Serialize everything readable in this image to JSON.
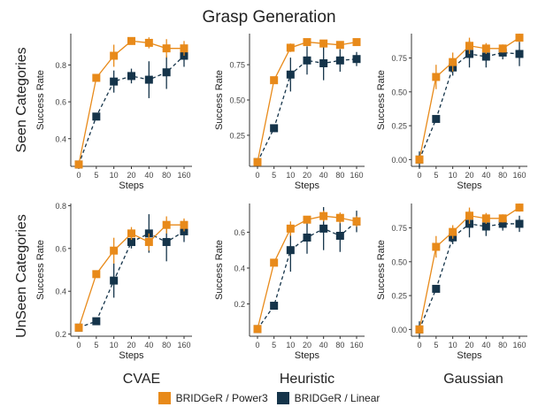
{
  "title": "Grasp Generation",
  "row_labels": [
    "Seen Categories",
    "UnSeen Categories"
  ],
  "col_labels": [
    "CVAE",
    "Heuristic",
    "Gaussian"
  ],
  "legend": [
    {
      "label": "BRIDGeR / Power3",
      "color": "#e88a1a"
    },
    {
      "label": "BRIDGeR / Linear",
      "color": "#15344a"
    }
  ],
  "chart_data": [
    {
      "type": "line",
      "row": "Seen Categories",
      "col": "CVAE",
      "xlabel": "Steps",
      "ylabel": "Success Rate",
      "x": [
        "0",
        "5",
        "10",
        "20",
        "40",
        "80",
        "160"
      ],
      "ylim": [
        0.25,
        0.97
      ],
      "yticks": [
        0.4,
        0.6,
        0.8
      ],
      "series": [
        {
          "name": "BRIDGeR / Power3",
          "values": [
            0.26,
            0.73,
            0.85,
            0.93,
            0.92,
            0.89,
            0.89
          ],
          "err": [
            0.0,
            0.0,
            0.06,
            0.02,
            0.03,
            0.05,
            0.04
          ]
        },
        {
          "name": "BRIDGeR / Linear",
          "values": [
            0.26,
            0.52,
            0.71,
            0.74,
            0.72,
            0.76,
            0.85
          ],
          "err": [
            0.0,
            0.0,
            0.06,
            0.04,
            0.1,
            0.09,
            0.06
          ]
        }
      ]
    },
    {
      "type": "line",
      "row": "Seen Categories",
      "col": "Heuristic",
      "xlabel": "Steps",
      "ylabel": "Success Rate",
      "x": [
        "0",
        "5",
        "10",
        "20",
        "40",
        "80",
        "160"
      ],
      "ylim": [
        0.03,
        0.97
      ],
      "yticks": [
        0.25,
        0.5,
        0.75
      ],
      "series": [
        {
          "name": "BRIDGeR / Power3",
          "values": [
            0.06,
            0.64,
            0.87,
            0.91,
            0.9,
            0.89,
            0.91
          ],
          "err": [
            0.0,
            0.0,
            0.03,
            0.02,
            0.02,
            0.02,
            0.02
          ]
        },
        {
          "name": "BRIDGeR / Linear",
          "values": [
            0.06,
            0.3,
            0.68,
            0.78,
            0.76,
            0.78,
            0.79
          ],
          "err": [
            0.0,
            0.0,
            0.12,
            0.1,
            0.12,
            0.08,
            0.05
          ]
        }
      ]
    },
    {
      "type": "line",
      "row": "Seen Categories",
      "col": "Gaussian",
      "xlabel": "Steps",
      "ylabel": "Success Rate",
      "x": [
        "0",
        "5",
        "10",
        "20",
        "40",
        "80",
        "160"
      ],
      "ylim": [
        -0.05,
        0.93
      ],
      "yticks": [
        0.0,
        0.25,
        0.5,
        0.75
      ],
      "series": [
        {
          "name": "BRIDGeR / Power3",
          "values": [
            0.0,
            0.61,
            0.72,
            0.84,
            0.82,
            0.82,
            0.9
          ],
          "err": [
            0.0,
            0.09,
            0.07,
            0.06,
            0.04,
            0.03,
            0.03
          ]
        },
        {
          "name": "BRIDGeR / Linear",
          "values": [
            0.0,
            0.3,
            0.68,
            0.78,
            0.76,
            0.79,
            0.78
          ],
          "err": [
            0.06,
            0.0,
            0.06,
            0.1,
            0.08,
            0.05,
            0.09
          ]
        }
      ]
    },
    {
      "type": "line",
      "row": "UnSeen Categories",
      "col": "CVAE",
      "xlabel": "Steps",
      "ylabel": "Success Rate",
      "x": [
        "0",
        "5",
        "10",
        "20",
        "40",
        "80",
        "160"
      ],
      "ylim": [
        0.19,
        0.81
      ],
      "yticks": [
        0.2,
        0.4,
        0.6,
        0.8
      ],
      "series": [
        {
          "name": "BRIDGeR / Power3",
          "values": [
            0.23,
            0.48,
            0.59,
            0.67,
            0.63,
            0.71,
            0.71
          ],
          "err": [
            0.0,
            0.0,
            0.06,
            0.03,
            0.04,
            0.04,
            0.03
          ]
        },
        {
          "name": "BRIDGeR / Linear",
          "values": [
            0.23,
            0.26,
            0.45,
            0.63,
            0.67,
            0.63,
            0.68
          ],
          "err": [
            0.0,
            0.0,
            0.08,
            0.03,
            0.09,
            0.09,
            0.05
          ]
        }
      ]
    },
    {
      "type": "line",
      "row": "UnSeen Categories",
      "col": "Heuristic",
      "xlabel": "Steps",
      "ylabel": "Success Rate",
      "x": [
        "0",
        "5",
        "10",
        "20",
        "40",
        "80",
        "160"
      ],
      "ylim": [
        0.02,
        0.76
      ],
      "yticks": [
        0.2,
        0.4,
        0.6
      ],
      "series": [
        {
          "name": "BRIDGeR / Power3",
          "values": [
            0.06,
            0.43,
            0.62,
            0.67,
            0.69,
            0.68,
            0.66
          ],
          "err": [
            0.0,
            0.0,
            0.04,
            0.02,
            0.03,
            0.03,
            0.03
          ]
        },
        {
          "name": "BRIDGeR / Linear",
          "values": [
            0.06,
            0.19,
            0.5,
            0.57,
            0.62,
            0.58,
            0.66
          ],
          "err": [
            0.0,
            0.0,
            0.12,
            0.09,
            0.12,
            0.09,
            0.06
          ]
        }
      ]
    },
    {
      "type": "line",
      "row": "UnSeen Categories",
      "col": "Gaussian",
      "xlabel": "Steps",
      "ylabel": "Success Rate",
      "x": [
        "0",
        "5",
        "10",
        "20",
        "40",
        "80",
        "160"
      ],
      "ylim": [
        -0.05,
        0.93
      ],
      "yticks": [
        0.0,
        0.25,
        0.5,
        0.75
      ],
      "series": [
        {
          "name": "BRIDGeR / Power3",
          "values": [
            0.0,
            0.61,
            0.72,
            0.84,
            0.82,
            0.82,
            0.9
          ],
          "err": [
            0.0,
            0.08,
            0.05,
            0.06,
            0.04,
            0.03,
            0.03
          ]
        },
        {
          "name": "BRIDGeR / Linear",
          "values": [
            0.0,
            0.3,
            0.68,
            0.78,
            0.76,
            0.78,
            0.78
          ],
          "err": [
            0.06,
            0.0,
            0.05,
            0.1,
            0.07,
            0.05,
            0.06
          ]
        }
      ]
    }
  ]
}
